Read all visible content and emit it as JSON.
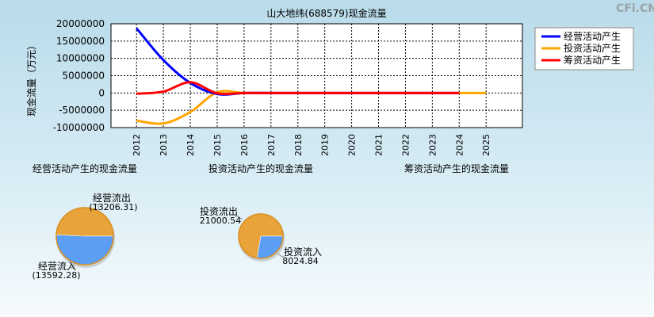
{
  "watermark": "CFi.CN",
  "chart_data": [
    {
      "type": "line",
      "title": "山大地纬(688579)现金流量",
      "ylabel": "现金流量（万元）",
      "ylim": [
        -10000000,
        20000000
      ],
      "yticks": [
        20000000,
        15000000,
        10000000,
        5000000,
        0,
        -5000000,
        -10000000
      ],
      "x": [
        "2012",
        "2013",
        "2014",
        "2015",
        "2016",
        "2017",
        "2018",
        "2019",
        "2020",
        "2021",
        "2022",
        "2023",
        "2024",
        "2025"
      ],
      "grid": true,
      "legend_position": "top-right",
      "series": [
        {
          "name": "经营活动产生",
          "color": "#0000ff",
          "points": [
            [
              2012,
              18700000
            ],
            [
              2013,
              9500000
            ],
            [
              2014,
              2900000
            ],
            [
              2015,
              -300000
            ],
            [
              2016,
              0
            ],
            [
              2017,
              0
            ],
            [
              2018,
              0
            ],
            [
              2019,
              0
            ],
            [
              2020,
              0
            ],
            [
              2021,
              0
            ],
            [
              2022,
              0
            ],
            [
              2023,
              0
            ],
            [
              2024,
              0
            ]
          ]
        },
        {
          "name": "投资活动产生",
          "color": "#ffa500",
          "points": [
            [
              2012,
              -8000000
            ],
            [
              2013,
              -8800000
            ],
            [
              2014,
              -5500000
            ],
            [
              2015,
              200000
            ],
            [
              2016,
              0
            ],
            [
              2017,
              0
            ],
            [
              2018,
              0
            ],
            [
              2019,
              0
            ],
            [
              2020,
              0
            ],
            [
              2021,
              0
            ],
            [
              2022,
              0
            ],
            [
              2023,
              0
            ],
            [
              2024,
              0
            ],
            [
              2025,
              0
            ]
          ]
        },
        {
          "name": "筹资活动产生",
          "color": "#ff0000",
          "points": [
            [
              2012,
              -200000
            ],
            [
              2013,
              400000
            ],
            [
              2014,
              3100000
            ],
            [
              2015,
              -100000
            ],
            [
              2016,
              0
            ],
            [
              2017,
              0
            ],
            [
              2018,
              0
            ],
            [
              2019,
              0
            ],
            [
              2020,
              0
            ],
            [
              2021,
              0
            ],
            [
              2022,
              0
            ],
            [
              2023,
              0
            ],
            [
              2024,
              0
            ]
          ]
        }
      ]
    },
    {
      "type": "pie",
      "title": "经营活动产生的现金流量",
      "slices": [
        {
          "label": "经营流出",
          "value": 13206.31,
          "value_text": "(13206.31)",
          "color": "#e8a33a"
        },
        {
          "label": "经营流入",
          "value": 13592.28,
          "value_text": "(13592.28)",
          "color": "#5b9ef4"
        }
      ]
    },
    {
      "type": "pie",
      "title": "投资活动产生的现金流量",
      "slices": [
        {
          "label": "投资流出",
          "value": 21000.54,
          "value_text": "21000.54",
          "color": "#e8a33a"
        },
        {
          "label": "投资流入",
          "value": 8024.84,
          "value_text": "8024.84",
          "color": "#5b9ef4"
        }
      ]
    },
    {
      "type": "pie",
      "title": "筹资活动产生的现金流量",
      "slices": []
    }
  ]
}
